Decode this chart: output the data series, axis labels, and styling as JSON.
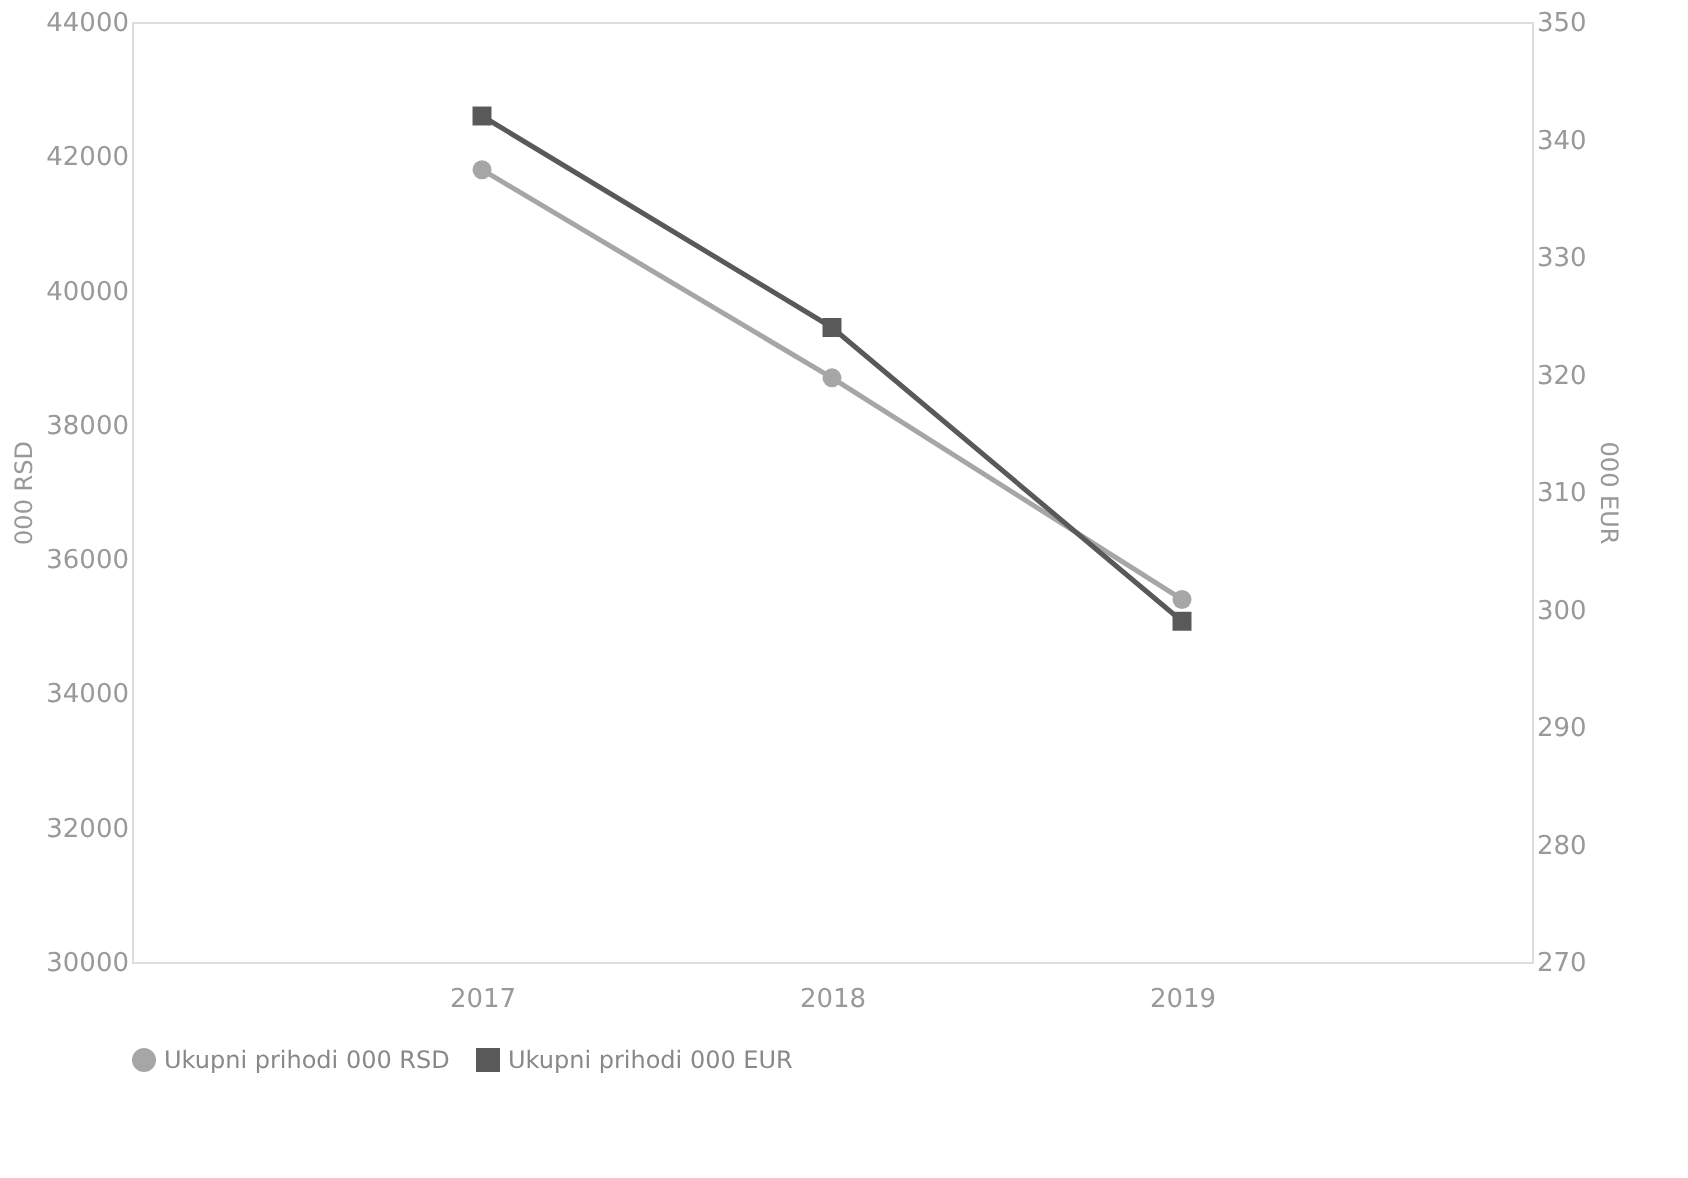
{
  "chart_data": {
    "type": "line",
    "categories": [
      "2017",
      "2018",
      "2019"
    ],
    "series": [
      {
        "name": "Ukupni prihodi 000 RSD",
        "color": "#a6a6a6",
        "marker": "circle",
        "values": [
          41800,
          38700,
          35400
        ]
      },
      {
        "name": "Ukupni prihodi 000 EUR",
        "color": "#595959",
        "marker": "square",
        "axis": "y2",
        "values": [
          342,
          324,
          299
        ]
      }
    ],
    "ylabel": "000 RSD",
    "y2label": "000 EUR",
    "ylim": [
      30000,
      44000
    ],
    "yticks": [
      30000,
      32000,
      34000,
      36000,
      38000,
      40000,
      42000,
      44000
    ],
    "y2lim": [
      270,
      350
    ],
    "y2ticks": [
      270,
      280,
      290,
      300,
      310,
      320,
      330,
      340,
      350
    ],
    "grid": false,
    "legend": "bottom",
    "line_style": "solid"
  }
}
